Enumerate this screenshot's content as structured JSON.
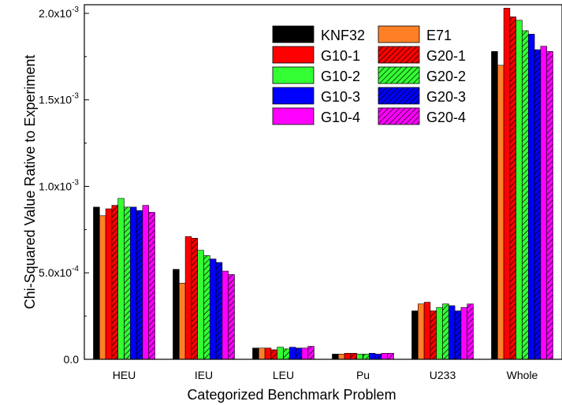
{
  "chart_data": {
    "type": "bar",
    "title": "",
    "xlabel": "Categorized Benchmark Problem",
    "ylabel": "Chi-Squared Value Rative to Experiment",
    "ylim": [
      0,
      0.00205
    ],
    "y_ticks": [
      {
        "value": 0.0,
        "mantissa": "0.0",
        "exponent": ""
      },
      {
        "value": 0.0005,
        "mantissa": "5.0x10",
        "exponent": "-4"
      },
      {
        "value": 0.001,
        "mantissa": "1.0x10",
        "exponent": "-3"
      },
      {
        "value": 0.0015,
        "mantissa": "1.5x10",
        "exponent": "-3"
      },
      {
        "value": 0.002,
        "mantissa": "2.0x10",
        "exponent": "-3"
      }
    ],
    "categories": [
      "HEU",
      "IEU",
      "LEU",
      "Pu",
      "U233",
      "Whole"
    ],
    "legend_position": "top-right",
    "series": [
      {
        "name": "KNF32",
        "color": "#000000",
        "hatched": false,
        "values": [
          0.00088,
          0.00052,
          6.5e-05,
          3e-05,
          0.00028,
          0.00178
        ]
      },
      {
        "name": "E71",
        "color": "#ff7f27",
        "hatched": false,
        "values": [
          0.00083,
          0.00044,
          6.5e-05,
          3e-05,
          0.00032,
          0.0017
        ]
      },
      {
        "name": "G10-1",
        "color": "#ff0000",
        "hatched": false,
        "values": [
          0.00087,
          0.00071,
          6.5e-05,
          3.5e-05,
          0.00033,
          0.00203
        ]
      },
      {
        "name": "G20-1",
        "color": "#ff0000",
        "hatched": true,
        "values": [
          0.00089,
          0.0007,
          5.5e-05,
          3.5e-05,
          0.00028,
          0.00198
        ]
      },
      {
        "name": "G10-2",
        "color": "#33ff33",
        "hatched": false,
        "values": [
          0.00093,
          0.00063,
          7e-05,
          3e-05,
          0.0003,
          0.00196
        ]
      },
      {
        "name": "G20-2",
        "color": "#33ff33",
        "hatched": true,
        "values": [
          0.00088,
          0.0006,
          6e-05,
          3e-05,
          0.00032,
          0.0019
        ]
      },
      {
        "name": "G10-3",
        "color": "#0000ff",
        "hatched": false,
        "values": [
          0.00088,
          0.00058,
          7e-05,
          3.5e-05,
          0.00031,
          0.00188
        ]
      },
      {
        "name": "G20-3",
        "color": "#0000ff",
        "hatched": true,
        "values": [
          0.00086,
          0.00056,
          6.5e-05,
          3e-05,
          0.00028,
          0.00179
        ]
      },
      {
        "name": "G10-4",
        "color": "#ff00ff",
        "hatched": false,
        "values": [
          0.00089,
          0.00051,
          6.5e-05,
          3.5e-05,
          0.0003,
          0.00181
        ]
      },
      {
        "name": "G20-4",
        "color": "#ff00ff",
        "hatched": true,
        "values": [
          0.00085,
          0.00049,
          7.5e-05,
          3.5e-05,
          0.00032,
          0.00178
        ]
      }
    ]
  }
}
